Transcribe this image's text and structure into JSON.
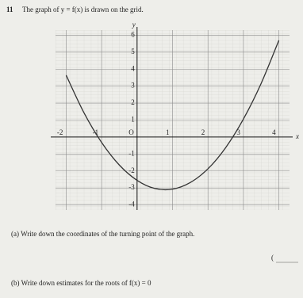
{
  "document": {
    "number": "11",
    "intro": "The graph of y = f(x) is drawn on the grid.",
    "question_a": "(a) Write down the coordinates of the turning point of the graph.",
    "answer_a_open": "(",
    "question_b": "(b) Write down estimates for the roots of f(x) = 0"
  },
  "chart_data": {
    "type": "line",
    "xlabel": "x",
    "ylabel": "y",
    "x": [
      -2,
      -1.5,
      -1,
      -0.5,
      0,
      0.5,
      1,
      1.5,
      2,
      2.5,
      3,
      3.5,
      4
    ],
    "values": [
      3.64,
      1.44,
      -0.32,
      -1.65,
      -2.55,
      -3.03,
      -3.07,
      -2.68,
      -1.87,
      -0.62,
      1.06,
      3.16,
      5.7
    ],
    "color": "#333333",
    "xlim": [
      -2.3,
      4.3
    ],
    "ylim": [
      -4.3,
      6.3
    ],
    "xticks": [
      -2,
      -1,
      {
        "value": 0,
        "label": "O"
      },
      1,
      2,
      3,
      4
    ],
    "yticks": [
      -4,
      -3,
      -2,
      -1,
      1,
      2,
      3,
      4,
      5,
      6
    ],
    "grid": true
  }
}
